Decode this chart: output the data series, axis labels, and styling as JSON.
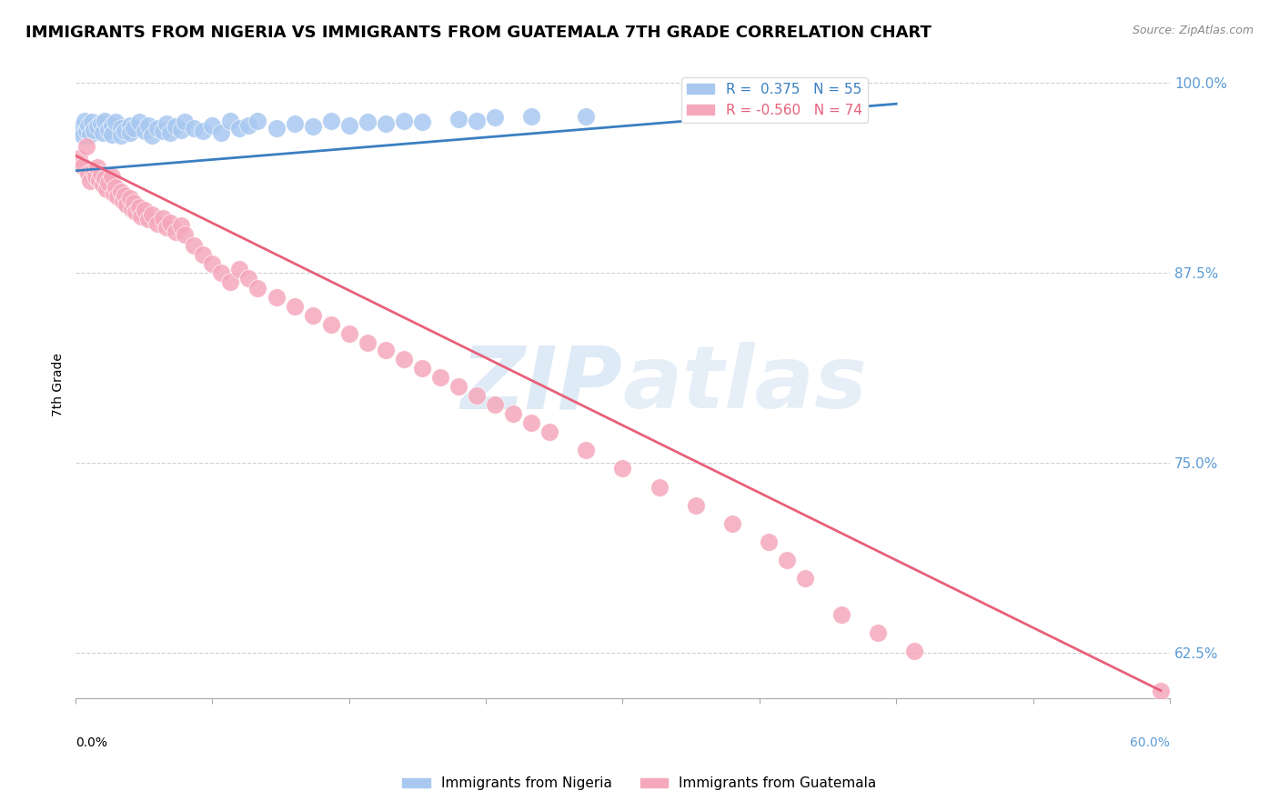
{
  "title": "IMMIGRANTS FROM NIGERIA VS IMMIGRANTS FROM GUATEMALA 7TH GRADE CORRELATION CHART",
  "source": "Source: ZipAtlas.com",
  "ylabel": "7th Grade",
  "legend_blue_r": "R =  0.375",
  "legend_blue_n": "N = 55",
  "legend_pink_r": "R = -0.560",
  "legend_pink_n": "N = 74",
  "x_min": 0.0,
  "x_max": 0.6,
  "y_min": 0.595,
  "y_max": 1.008,
  "y_ticks": [
    0.625,
    0.75,
    0.875,
    1.0
  ],
  "y_tick_labels": [
    "62.5%",
    "75.0%",
    "87.5%",
    "100.0%"
  ],
  "x_ticks": [
    0.0,
    0.075,
    0.15,
    0.225,
    0.3,
    0.375,
    0.45,
    0.525,
    0.6
  ],
  "blue_color": "#A8C8F0",
  "pink_color": "#F5A8BC",
  "blue_line_color": "#3A7FC1",
  "pink_line_color": "#E8607A",
  "watermark_color": "#C8DCF0",
  "blue_points_x": [
    0.002,
    0.004,
    0.005,
    0.006,
    0.007,
    0.008,
    0.009,
    0.01,
    0.012,
    0.014,
    0.015,
    0.016,
    0.018,
    0.02,
    0.02,
    0.022,
    0.025,
    0.025,
    0.027,
    0.03,
    0.03,
    0.032,
    0.035,
    0.038,
    0.04,
    0.042,
    0.045,
    0.048,
    0.05,
    0.052,
    0.055,
    0.058,
    0.06,
    0.065,
    0.07,
    0.075,
    0.08,
    0.085,
    0.09,
    0.095,
    0.1,
    0.11,
    0.12,
    0.13,
    0.14,
    0.15,
    0.16,
    0.17,
    0.18,
    0.19,
    0.21,
    0.22,
    0.23,
    0.25,
    0.28
  ],
  "blue_points_y": [
    0.97,
    0.965,
    0.975,
    0.968,
    0.972,
    0.966,
    0.974,
    0.969,
    0.971,
    0.973,
    0.967,
    0.975,
    0.969,
    0.972,
    0.966,
    0.974,
    0.97,
    0.965,
    0.968,
    0.972,
    0.967,
    0.97,
    0.974,
    0.968,
    0.972,
    0.965,
    0.97,
    0.968,
    0.973,
    0.967,
    0.971,
    0.969,
    0.974,
    0.97,
    0.968,
    0.972,
    0.967,
    0.975,
    0.97,
    0.972,
    0.975,
    0.97,
    0.973,
    0.971,
    0.975,
    0.972,
    0.974,
    0.973,
    0.975,
    0.974,
    0.976,
    0.975,
    0.977,
    0.978,
    0.978
  ],
  "pink_points_x": [
    0.002,
    0.004,
    0.006,
    0.007,
    0.008,
    0.01,
    0.011,
    0.012,
    0.013,
    0.014,
    0.015,
    0.016,
    0.017,
    0.018,
    0.02,
    0.021,
    0.022,
    0.023,
    0.025,
    0.026,
    0.027,
    0.028,
    0.03,
    0.031,
    0.032,
    0.033,
    0.035,
    0.036,
    0.038,
    0.04,
    0.042,
    0.045,
    0.048,
    0.05,
    0.052,
    0.055,
    0.058,
    0.06,
    0.065,
    0.07,
    0.075,
    0.08,
    0.085,
    0.09,
    0.095,
    0.1,
    0.11,
    0.12,
    0.13,
    0.14,
    0.15,
    0.16,
    0.17,
    0.18,
    0.19,
    0.2,
    0.21,
    0.22,
    0.23,
    0.24,
    0.25,
    0.26,
    0.28,
    0.3,
    0.32,
    0.34,
    0.36,
    0.38,
    0.39,
    0.4,
    0.42,
    0.44,
    0.46,
    0.595
  ],
  "pink_points_y": [
    0.95,
    0.945,
    0.958,
    0.94,
    0.935,
    0.942,
    0.938,
    0.944,
    0.936,
    0.94,
    0.933,
    0.937,
    0.93,
    0.934,
    0.938,
    0.927,
    0.931,
    0.925,
    0.928,
    0.922,
    0.926,
    0.92,
    0.924,
    0.917,
    0.921,
    0.915,
    0.918,
    0.912,
    0.916,
    0.91,
    0.913,
    0.907,
    0.911,
    0.905,
    0.908,
    0.902,
    0.906,
    0.9,
    0.893,
    0.887,
    0.881,
    0.875,
    0.869,
    0.877,
    0.871,
    0.865,
    0.859,
    0.853,
    0.847,
    0.841,
    0.835,
    0.829,
    0.824,
    0.818,
    0.812,
    0.806,
    0.8,
    0.794,
    0.788,
    0.782,
    0.776,
    0.77,
    0.758,
    0.746,
    0.734,
    0.722,
    0.71,
    0.698,
    0.686,
    0.674,
    0.65,
    0.638,
    0.626,
    0.6
  ],
  "blue_trend_x": [
    0.0,
    0.45
  ],
  "blue_trend_y": [
    0.942,
    0.986
  ],
  "pink_trend_x": [
    0.0,
    0.595
  ],
  "pink_trend_y": [
    0.952,
    0.6
  ],
  "background_color": "#FFFFFF",
  "grid_color": "#D0D0D0",
  "right_axis_color": "#5B9BD5",
  "title_fontsize": 13,
  "axis_label_fontsize": 10,
  "dot_size": 200
}
